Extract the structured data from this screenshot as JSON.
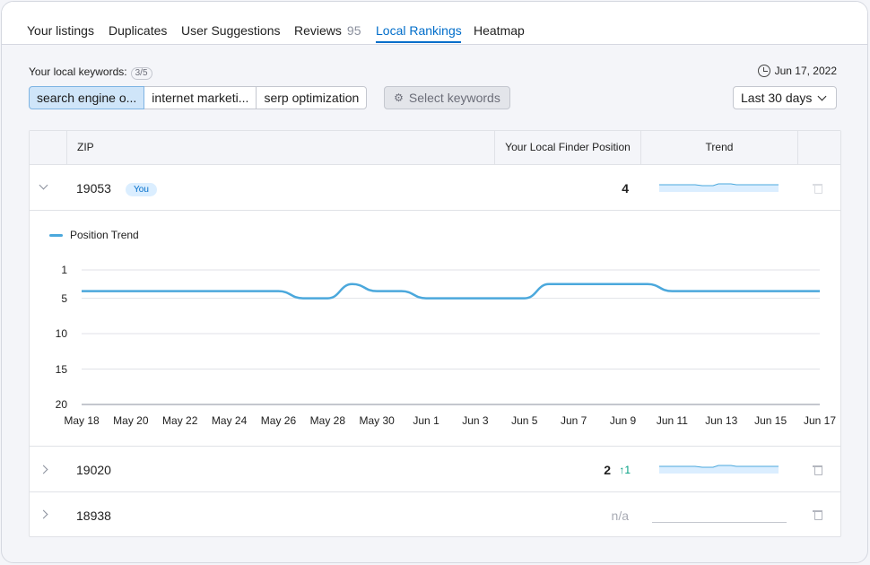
{
  "tabs": [
    {
      "label": "Your listings",
      "count": ""
    },
    {
      "label": "Duplicates",
      "count": ""
    },
    {
      "label": "User Suggestions",
      "count": ""
    },
    {
      "label": "Reviews",
      "count": "95"
    },
    {
      "label": "Local Rankings",
      "count": ""
    },
    {
      "label": "Heatmap",
      "count": ""
    }
  ],
  "active_tab": "Local Rankings",
  "keywords": {
    "label": "Your local keywords:",
    "count": "3/5",
    "items": [
      "search engine o...",
      "internet marketi...",
      "serp optimization"
    ],
    "select_label": "Select keywords"
  },
  "date": "Jun 17, 2022",
  "range": "Last 30 days",
  "table": {
    "headers": {
      "zip": "ZIP",
      "position": "Your Local Finder Position",
      "trend": "Trend"
    },
    "rows": [
      {
        "zip": "19053",
        "badge": "You",
        "position": "4",
        "delta": "",
        "expanded": true
      },
      {
        "zip": "19020",
        "badge": "",
        "position": "2",
        "delta": "↑1",
        "expanded": false
      },
      {
        "zip": "18938",
        "badge": "",
        "position": "n/a",
        "delta": "",
        "expanded": false
      }
    ]
  },
  "chart_data": {
    "type": "line",
    "legend": [
      "Position Trend"
    ],
    "y_ticks": [
      1,
      5,
      10,
      15,
      20
    ],
    "ylim": [
      1,
      20
    ],
    "y_inverted": true,
    "x_ticks": [
      "May 18",
      "May 20",
      "May 22",
      "May 24",
      "May 26",
      "May 28",
      "May 30",
      "Jun 1",
      "Jun 3",
      "Jun 5",
      "Jun 7",
      "Jun 9",
      "Jun 11",
      "Jun 13",
      "Jun 15",
      "Jun 17"
    ],
    "series": [
      {
        "name": "Position Trend",
        "color": "#4ba8dc",
        "x": [
          "May 18",
          "May 19",
          "May 20",
          "May 21",
          "May 22",
          "May 23",
          "May 24",
          "May 25",
          "May 26",
          "May 27",
          "May 28",
          "May 29",
          "May 30",
          "May 31",
          "Jun 1",
          "Jun 2",
          "Jun 3",
          "Jun 4",
          "Jun 5",
          "Jun 6",
          "Jun 7",
          "Jun 8",
          "Jun 9",
          "Jun 10",
          "Jun 11",
          "Jun 12",
          "Jun 13",
          "Jun 14",
          "Jun 15",
          "Jun 16",
          "Jun 17"
        ],
        "values": [
          4,
          4,
          4,
          4,
          4,
          4,
          4,
          4,
          4,
          5,
          5,
          3,
          4,
          4,
          5,
          5,
          5,
          5,
          5,
          3,
          3,
          3,
          3,
          3,
          4,
          4,
          4,
          4,
          4,
          4,
          4
        ]
      }
    ]
  }
}
